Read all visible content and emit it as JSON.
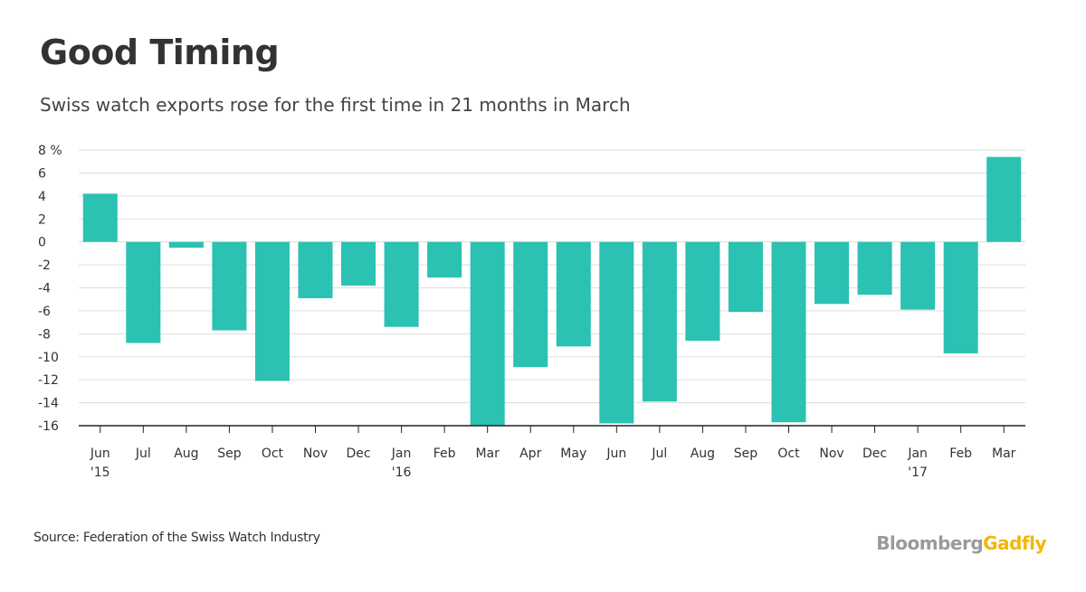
{
  "title": "Good Timing",
  "subtitle": "Swiss watch exports rose for the first time in 21 months in March",
  "source": "Source: Federation of the Swiss Watch Industry",
  "brand": {
    "part1": "Bloomberg",
    "part2": "Gadfly"
  },
  "colors": {
    "bar": "#2bc1b3",
    "grid": "#dddddd",
    "axis": "#222222",
    "text": "#333333"
  },
  "chart_data": {
    "type": "bar",
    "categories": [
      "Jun",
      "Jul",
      "Aug",
      "Sep",
      "Oct",
      "Nov",
      "Dec",
      "Jan",
      "Feb",
      "Mar",
      "Apr",
      "May",
      "Jun",
      "Jul",
      "Aug",
      "Sep",
      "Oct",
      "Nov",
      "Dec",
      "Jan",
      "Feb",
      "Mar"
    ],
    "year_labels": [
      "'15",
      "",
      "",
      "",
      "",
      "",
      "",
      "'16",
      "",
      "",
      "",
      "",
      "",
      "",
      "",
      "",
      "",
      "",
      "",
      "'17",
      "",
      ""
    ],
    "values": [
      4.2,
      -8.8,
      -0.5,
      -7.7,
      -12.1,
      -4.9,
      -3.8,
      -7.4,
      -3.1,
      -16.0,
      -10.9,
      -9.1,
      -15.8,
      -13.9,
      -8.6,
      -6.1,
      -15.7,
      -5.4,
      -4.6,
      -5.9,
      -9.7,
      7.4
    ],
    "ylim": [
      -16,
      8
    ],
    "yticks": [
      8,
      6,
      4,
      2,
      0,
      -2,
      -4,
      -6,
      -8,
      -10,
      -12,
      -14,
      -16
    ],
    "ytick_labels": [
      "8 %",
      "6",
      "4",
      "2",
      "0",
      "-2",
      "-4",
      "-6",
      "-8",
      "-10",
      "-12",
      "-14",
      "-16"
    ],
    "xlabel": "",
    "ylabel": "",
    "grid": true,
    "legend": "none"
  }
}
